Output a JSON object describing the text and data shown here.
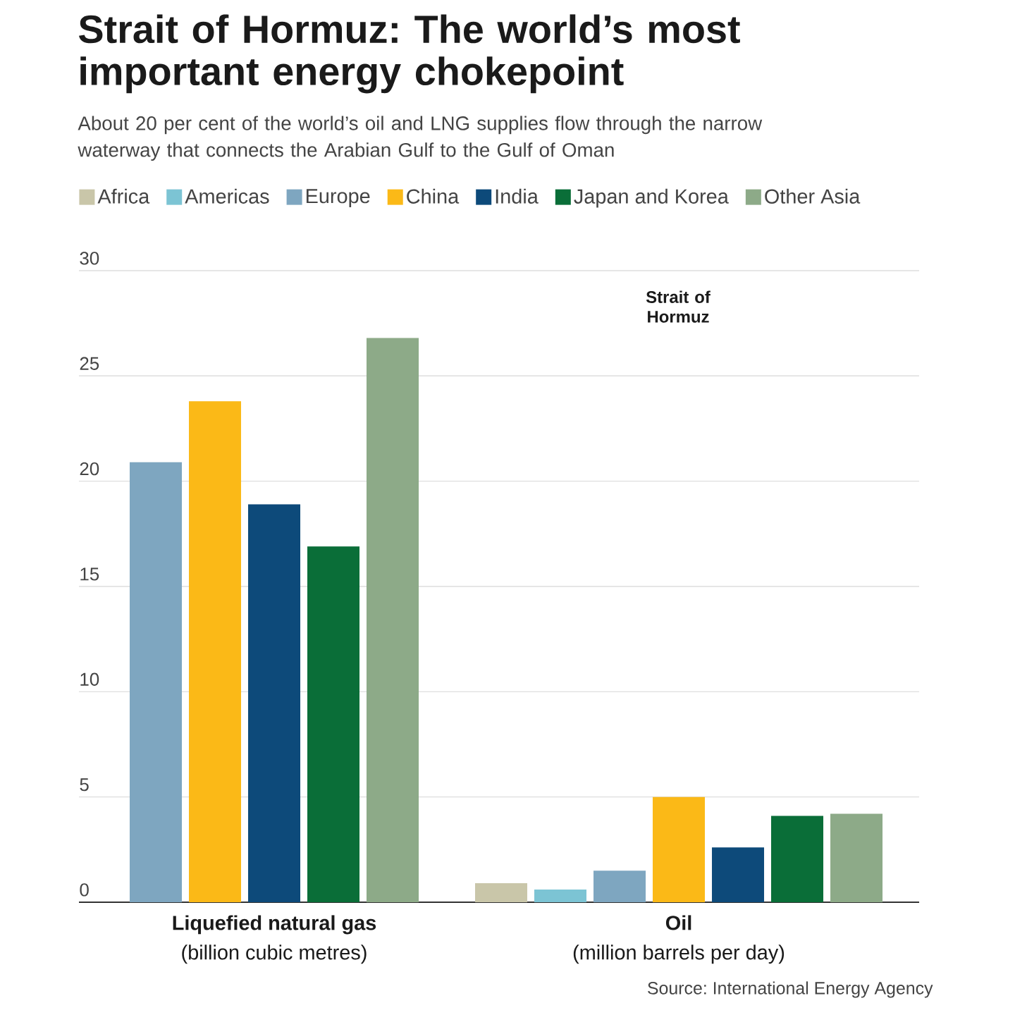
{
  "chart_data": {
    "type": "bar",
    "title": "Strait of Hormuz: The world’s most important energy chokepoint",
    "subtitle": "About 20 per cent of the world’s oil and LNG supplies flow through the narrow waterway that connects the Arabian Gulf to the Gulf of Oman",
    "categories": [
      "**Liquefied natural gas**\n(billion cubic metres)",
      "**Oil**\n(million barrels per day)"
    ],
    "series": [
      {
        "name": "Africa",
        "color": "#c9c6a9",
        "values": [
          null,
          0.9
        ]
      },
      {
        "name": "Americas",
        "color": "#7cc4d4",
        "values": [
          null,
          0.6
        ]
      },
      {
        "name": "Europe",
        "color": "#7ea6c0",
        "values": [
          20.9,
          1.5
        ]
      },
      {
        "name": "China",
        "color": "#fbb917",
        "values": [
          23.8,
          5.0
        ]
      },
      {
        "name": "India",
        "color": "#0d4a7a",
        "values": [
          18.9,
          2.6
        ]
      },
      {
        "name": "Japan and Korea",
        "color": "#0a6e38",
        "values": [
          16.9,
          4.1
        ]
      },
      {
        "name": "Other Asia",
        "color": "#8daa88",
        "values": [
          26.8,
          4.2
        ]
      }
    ],
    "ylim": [
      0,
      30
    ],
    "yticks": [
      0,
      5,
      10,
      15,
      20,
      25,
      30
    ],
    "grid": "y",
    "legend": "top",
    "annotations": [
      "Strait of Hormuz",
      "Source: International Energy Agency"
    ]
  }
}
